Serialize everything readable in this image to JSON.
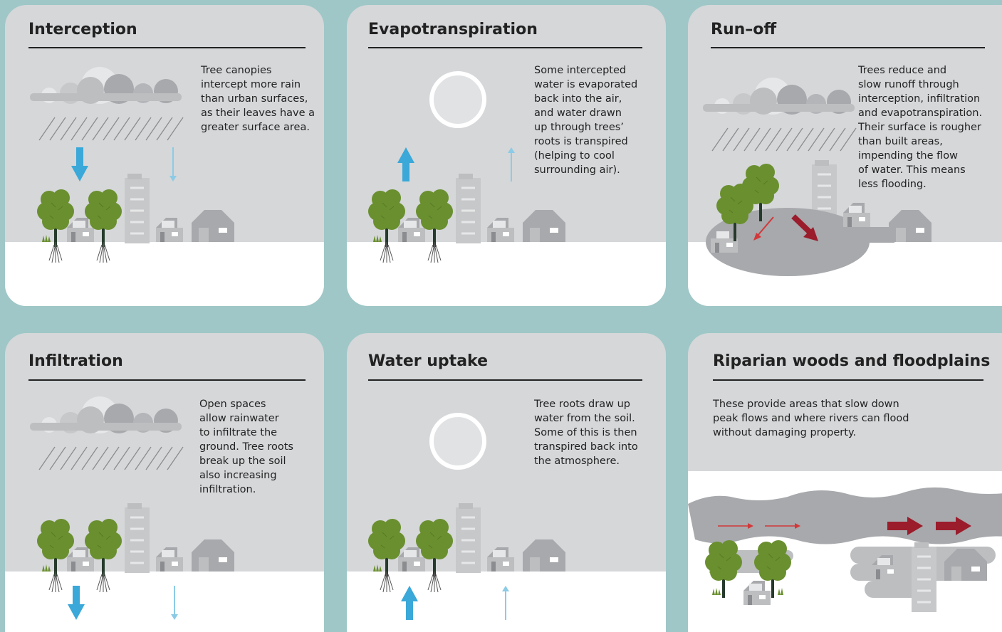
{
  "cards": [
    {
      "title": "Interception",
      "text": [
        "Tree canopies",
        "intercept more rain",
        "than urban surfaces,",
        "as their leaves have a",
        "greater surface area."
      ]
    },
    {
      "title": "Evapotranspiration",
      "text": [
        "Some intercepted",
        "water is evaporated",
        "back into the air,",
        "and water drawn",
        "up through trees’",
        "roots is transpired",
        "(helping to cool",
        "surrounding air)."
      ]
    },
    {
      "title": "Run–off",
      "text": [
        "Trees reduce and",
        "slow runoff through",
        "interception, infiltration",
        "and evapotranspiration.",
        "Their surface is rougher",
        "than built areas,",
        "impending the flow",
        "of water. This means",
        "less flooding."
      ]
    },
    {
      "title": "Infiltration",
      "text": [
        "Open spaces",
        "allow rainwater",
        "to infiltrate the",
        "ground. Tree roots",
        "break up the soil",
        "also increasing",
        "infiltration."
      ]
    },
    {
      "title": "Water uptake",
      "text": [
        "Tree roots draw up",
        "water from the soil.",
        "Some of this is then",
        "transpired back into",
        "the atmosphere."
      ]
    },
    {
      "title": "Riparian woods and floodplains",
      "text": [
        "These provide areas that slow down",
        "peak flows and where rivers can flood",
        "without damaging property."
      ]
    }
  ]
}
